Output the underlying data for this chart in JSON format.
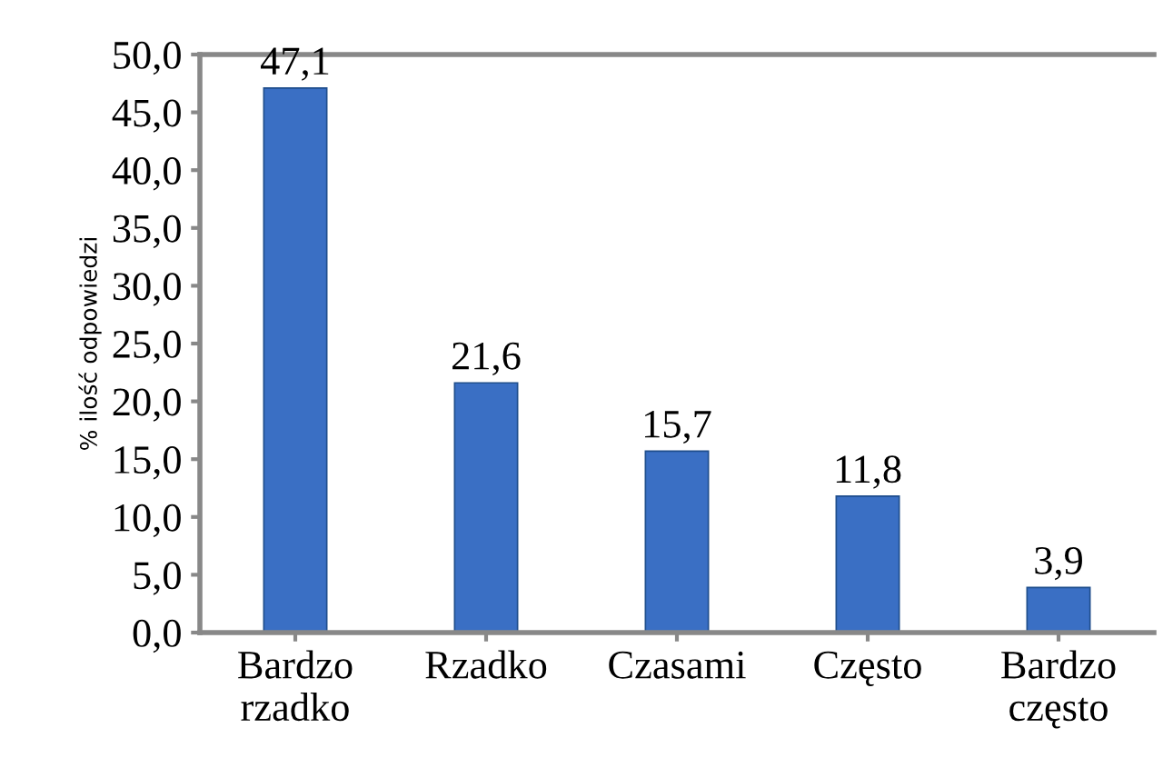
{
  "chart_data": {
    "type": "bar",
    "ylabel": "% ilość odpowiedzi",
    "categories": [
      "Bardzo\nrzadko",
      "Rzadko",
      "Czasami",
      "Często",
      "Bardzo\nczęsto"
    ],
    "values": [
      47.1,
      21.6,
      15.7,
      11.8,
      3.9
    ],
    "value_labels": [
      "47,1",
      "21,6",
      "15,7",
      "11,8",
      "3,9"
    ],
    "color": "#3a6fc4",
    "ylim": [
      0,
      50
    ],
    "yticks": [
      {
        "value": 0,
        "label": "0,0"
      },
      {
        "value": 5,
        "label": "5,0"
      },
      {
        "value": 10,
        "label": "10,0"
      },
      {
        "value": 15,
        "label": "15,0"
      },
      {
        "value": 20,
        "label": "20,0"
      },
      {
        "value": 25,
        "label": "25,0"
      },
      {
        "value": 30,
        "label": "30,0"
      },
      {
        "value": 35,
        "label": "35,0"
      },
      {
        "value": 40,
        "label": "40,0"
      },
      {
        "value": 45,
        "label": "45,0"
      },
      {
        "value": 50,
        "label": "50,0"
      }
    ],
    "grid": false
  }
}
